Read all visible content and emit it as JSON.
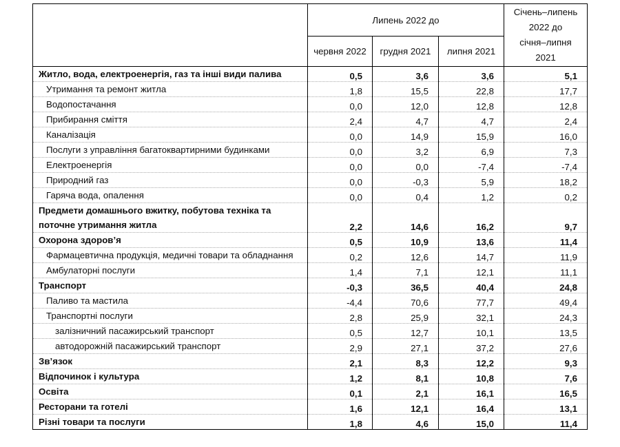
{
  "header": {
    "group_label": "Липень 2022 до",
    "cols": [
      "червня 2022",
      "грудня 2021",
      "липня 2021"
    ],
    "cumulative_label": [
      "Січень–липень",
      "2022 до",
      "січня–липня",
      "2021"
    ]
  },
  "rows": [
    {
      "label": "Житло, вода, електроенергія, газ та інші види палива",
      "level": 0,
      "bold": true,
      "values": [
        "0,5",
        "3,6",
        "3,6",
        "5,1"
      ]
    },
    {
      "label": "Утримання та ремонт житла",
      "level": 1,
      "bold": false,
      "values": [
        "1,8",
        "15,5",
        "22,8",
        "17,7"
      ]
    },
    {
      "label": "Водопостачання",
      "level": 1,
      "bold": false,
      "values": [
        "0,0",
        "12,0",
        "12,8",
        "12,8"
      ]
    },
    {
      "label": "Прибирання сміття",
      "level": 1,
      "bold": false,
      "values": [
        "2,4",
        "4,7",
        "4,7",
        "2,4"
      ]
    },
    {
      "label": "Каналізація",
      "level": 1,
      "bold": false,
      "values": [
        "0,0",
        "14,9",
        "15,9",
        "16,0"
      ]
    },
    {
      "label": "Послуги з управління багатоквартирними будинками",
      "level": 1,
      "bold": false,
      "values": [
        "0,0",
        "3,2",
        "6,9",
        "7,3"
      ]
    },
    {
      "label": "Електроенергія",
      "level": 1,
      "bold": false,
      "values": [
        "0,0",
        "0,0",
        "-7,4",
        "-7,4"
      ]
    },
    {
      "label": "Природний газ",
      "level": 1,
      "bold": false,
      "values": [
        "0,0",
        "-0,3",
        "5,9",
        "18,2"
      ]
    },
    {
      "label": "Гаряча вода, опалення",
      "level": 1,
      "bold": false,
      "values": [
        "0,0",
        "0,4",
        "1,2",
        "0,2"
      ]
    },
    {
      "label": "Предмети домашнього вжитку, побутова техніка та поточне утримання житла",
      "level": 0,
      "bold": true,
      "values": [
        "2,2",
        "14,6",
        "16,2",
        "9,7"
      ]
    },
    {
      "label": "Охорона здоров’я",
      "level": 0,
      "bold": true,
      "values": [
        "0,5",
        "10,9",
        "13,6",
        "11,4"
      ]
    },
    {
      "label": "Фармацевтична продукція, медичні товари та обладнання",
      "level": 1,
      "bold": false,
      "values": [
        "0,2",
        "12,6",
        "14,7",
        "11,9"
      ]
    },
    {
      "label": "Амбулаторні послуги",
      "level": 1,
      "bold": false,
      "values": [
        "1,4",
        "7,1",
        "12,1",
        "11,1"
      ]
    },
    {
      "label": "Транспорт",
      "level": 0,
      "bold": true,
      "values": [
        "-0,3",
        "36,5",
        "40,4",
        "24,8"
      ]
    },
    {
      "label": "Паливо та мастила",
      "level": 1,
      "bold": false,
      "values": [
        "-4,4",
        "70,6",
        "77,7",
        "49,4"
      ]
    },
    {
      "label": "Транспортні послуги",
      "level": 1,
      "bold": false,
      "values": [
        "2,8",
        "25,9",
        "32,1",
        "24,3"
      ]
    },
    {
      "label": "залізничний пасажирський транспорт",
      "level": 2,
      "bold": false,
      "values": [
        "0,5",
        "12,7",
        "10,1",
        "13,5"
      ]
    },
    {
      "label": "автодорожній пасажирський транспорт",
      "level": 2,
      "bold": false,
      "values": [
        "2,9",
        "27,1",
        "37,2",
        "27,6"
      ]
    },
    {
      "label": "Зв’язок",
      "level": 0,
      "bold": true,
      "values": [
        "2,1",
        "8,3",
        "12,2",
        "9,3"
      ]
    },
    {
      "label": "Відпочинок і культура",
      "level": 0,
      "bold": true,
      "values": [
        "1,2",
        "8,1",
        "10,8",
        "7,6"
      ]
    },
    {
      "label": "Освіта",
      "level": 0,
      "bold": true,
      "values": [
        "0,1",
        "2,1",
        "16,1",
        "16,5"
      ]
    },
    {
      "label": "Ресторани та готелі",
      "level": 0,
      "bold": true,
      "values": [
        "1,6",
        "12,1",
        "16,4",
        "13,1"
      ]
    },
    {
      "label": "Різні товари та послуги",
      "level": 0,
      "bold": true,
      "values": [
        "1,8",
        "4,6",
        "15,0",
        "11,4"
      ]
    }
  ]
}
